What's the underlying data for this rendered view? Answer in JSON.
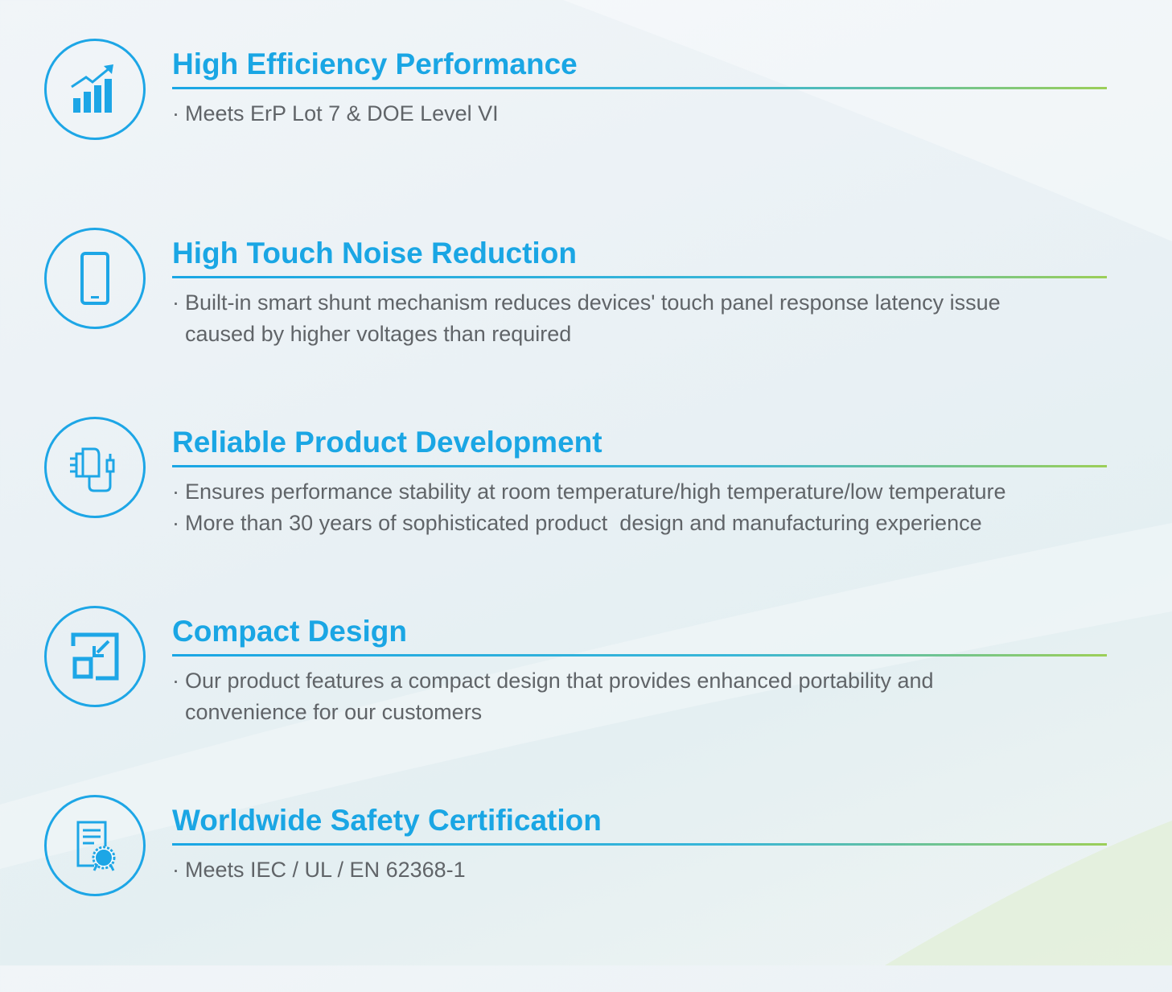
{
  "colors": {
    "accent": "#1aa6e4",
    "rule_end": "#9ccf58",
    "text": "#606468"
  },
  "bullet_marker": "·",
  "features": [
    {
      "icon": "bar-chart-growth-icon",
      "title": "High Efficiency Performance",
      "bullets": [
        "Meets ErP Lot 7 & DOE Level VI"
      ]
    },
    {
      "icon": "smartphone-icon",
      "title": "High Touch Noise Reduction",
      "bullets": [
        "Built-in smart shunt mechanism reduces devices' touch panel response latency issue\ncaused by higher voltages than required"
      ]
    },
    {
      "icon": "power-adapter-icon",
      "title": "Reliable Product Development",
      "bullets": [
        "Ensures performance stability at room temperature/high temperature/low temperature",
        "More than 30 years of sophisticated product  design and manufacturing experience"
      ]
    },
    {
      "icon": "compact-resize-icon",
      "title": "Compact Design",
      "bullets": [
        "Our product features a compact design that provides enhanced portability and\nconvenience for our customers"
      ]
    },
    {
      "icon": "certificate-icon",
      "title": "Worldwide Safety Certification",
      "bullets": [
        "Meets IEC / UL / EN 62368-1"
      ]
    }
  ]
}
